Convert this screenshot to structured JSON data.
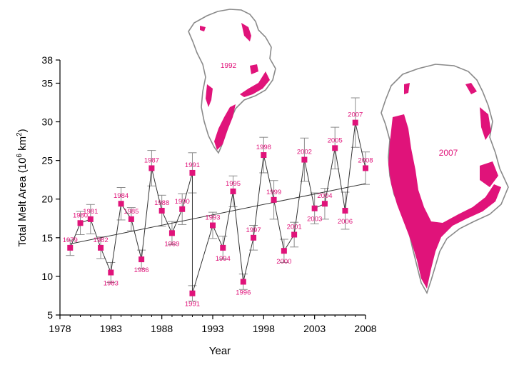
{
  "colors": {
    "marker": "#e0137a",
    "label": "#e0137a",
    "axis": "#000000",
    "line": "#333333",
    "error_bar": "#8c8c8c",
    "coast": "#8a8a8a",
    "melt": "#e0137a",
    "ice_edge": "#9fd0e6"
  },
  "chart_data": {
    "type": "line",
    "title": "",
    "xlabel": "Year",
    "ylabel_main": "Total Melt Area (10",
    "ylabel_exp1": "6",
    "ylabel_unit": " km",
    "ylabel_exp2": "2",
    "ylabel_close": ")",
    "xlim": [
      1978,
      2008
    ],
    "ylim": [
      5,
      38
    ],
    "xticks": [
      "1978",
      "1983",
      "1988",
      "1993",
      "1998",
      "2003",
      "2008"
    ],
    "xtick_values": [
      1978,
      1983,
      1988,
      1993,
      1998,
      2003,
      2008
    ],
    "yticks": [
      "5",
      "10",
      "15",
      "20",
      "25",
      "30",
      "35",
      "38"
    ],
    "ytick_values": [
      5,
      10,
      15,
      20,
      25,
      30,
      35,
      38
    ],
    "series": [
      {
        "x": [
          1979,
          1980,
          1981,
          1982,
          1983,
          1984,
          1985,
          1986,
          1987,
          1988,
          1989,
          1990,
          1991,
          1991,
          1993,
          1994,
          1995,
          1996,
          1997,
          1998,
          1999,
          2000,
          2001,
          2002,
          2003,
          2004,
          2005,
          2006,
          2007,
          2008
        ],
        "labels": [
          "1979",
          "1980",
          "1981",
          "1982",
          "1983",
          "1984",
          "1985",
          "1986",
          "1987",
          "1988",
          "1989",
          "1990",
          "1991",
          "1991",
          "1993",
          "1994",
          "1995",
          "1996",
          "1997",
          "1998",
          "1999",
          "2000",
          "2001",
          "2002",
          "2003",
          "2004",
          "2005",
          "2006",
          "2007",
          "2008"
        ],
        "values": [
          13.7,
          16.9,
          17.4,
          13.7,
          10.5,
          19.4,
          17.4,
          12.2,
          24.0,
          18.5,
          15.6,
          18.7,
          23.4,
          7.8,
          16.6,
          13.7,
          21.0,
          9.3,
          15.0,
          25.7,
          19.9,
          13.3,
          15.4,
          25.1,
          18.8,
          19.4,
          26.6,
          18.5,
          29.9,
          24.0
        ],
        "err": [
          1.0,
          1.5,
          1.9,
          1.4,
          1.3,
          2.1,
          1.5,
          1.2,
          2.3,
          2.0,
          1.5,
          2.0,
          2.6,
          1.0,
          1.7,
          1.5,
          2.0,
          1.0,
          1.6,
          2.3,
          2.5,
          1.5,
          1.6,
          2.8,
          2.0,
          2.0,
          2.7,
          2.4,
          3.2,
          2.1
        ]
      }
    ],
    "trend": {
      "x": [
        1979,
        2008
      ],
      "y": [
        14.2,
        22.0
      ]
    },
    "grid": false
  },
  "maps": {
    "small_label": "1992",
    "large_label": "2007"
  }
}
